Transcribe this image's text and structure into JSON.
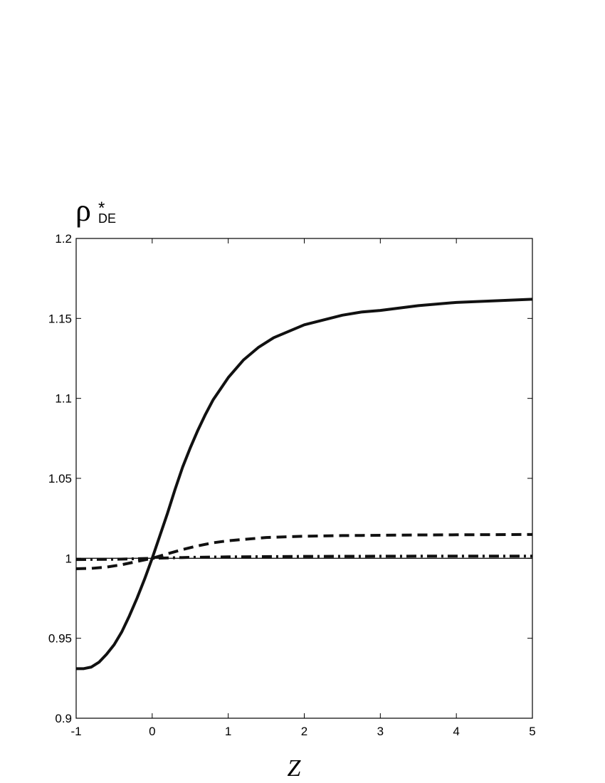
{
  "chart_data": {
    "type": "line",
    "title": "",
    "xlabel": "Z",
    "ylabel": {
      "symbol": "ρ",
      "superscript": "*",
      "subscript": "DE"
    },
    "xlim": [
      -1,
      5
    ],
    "ylim": [
      0.9,
      1.2
    ],
    "xticks": [
      -1,
      0,
      1,
      2,
      3,
      4,
      5
    ],
    "yticks": [
      0.9,
      0.95,
      1,
      1.05,
      1.1,
      1.15,
      1.2
    ],
    "xtick_labels": [
      "-1",
      "0",
      "1",
      "2",
      "3",
      "4",
      "5"
    ],
    "ytick_labels": [
      "0.9",
      "0.95",
      "1",
      "1.05",
      "1.1",
      "1.15",
      "1.2"
    ],
    "grid": false,
    "legend": "none",
    "series": [
      {
        "style": "solid-thick",
        "x": [
          -1,
          -0.9,
          -0.8,
          -0.7,
          -0.6,
          -0.5,
          -0.4,
          -0.3,
          -0.2,
          -0.1,
          0,
          0.1,
          0.2,
          0.3,
          0.4,
          0.5,
          0.6,
          0.7,
          0.8,
          0.9,
          1.0,
          1.2,
          1.4,
          1.6,
          1.8,
          2.0,
          2.25,
          2.5,
          2.75,
          3.0,
          3.5,
          4.0,
          4.5,
          5.0
        ],
        "y": [
          0.931,
          0.931,
          0.932,
          0.935,
          0.94,
          0.946,
          0.954,
          0.964,
          0.975,
          0.987,
          1.0,
          1.014,
          1.028,
          1.043,
          1.057,
          1.069,
          1.08,
          1.09,
          1.099,
          1.106,
          1.113,
          1.124,
          1.132,
          1.138,
          1.142,
          1.146,
          1.149,
          1.152,
          1.154,
          1.155,
          1.158,
          1.16,
          1.161,
          1.162
        ]
      },
      {
        "style": "dashed",
        "x": [
          -1,
          -0.8,
          -0.6,
          -0.4,
          -0.2,
          0,
          0.2,
          0.4,
          0.6,
          0.8,
          1.0,
          1.5,
          2.0,
          2.5,
          3.0,
          3.5,
          4.0,
          4.5,
          5.0
        ],
        "y": [
          0.9935,
          0.9937,
          0.9945,
          0.996,
          0.998,
          1.0,
          1.0028,
          1.0055,
          1.0078,
          1.0097,
          1.011,
          1.013,
          1.0138,
          1.0142,
          1.0144,
          1.0146,
          1.0147,
          1.0148,
          1.0149
        ]
      },
      {
        "style": "dash-dot",
        "x": [
          -1,
          -0.5,
          0,
          0.5,
          1.0,
          2.0,
          3.0,
          4.0,
          5.0
        ],
        "y": [
          0.9992,
          0.9994,
          1.0,
          1.0006,
          1.0009,
          1.0012,
          1.0013,
          1.0014,
          1.0014
        ]
      },
      {
        "style": "solid-thin",
        "x": [
          -1,
          5
        ],
        "y": [
          1.0,
          1.0
        ]
      }
    ]
  }
}
